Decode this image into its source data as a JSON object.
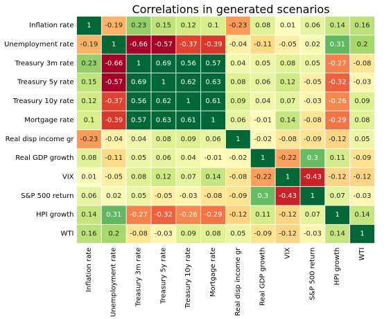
{
  "chart_data": {
    "type": "heatmap",
    "title": "Correlations in generated scenarios",
    "row_labels": [
      "Inflation rate",
      "Unemployment rate",
      "Treasury 3m rate",
      "Treasury 5y rate",
      "Treasury 10y rate",
      "Mortgage rate",
      "Real disp income gr",
      "Real GDP growth",
      "VIX",
      "S&P 500 return",
      "HPI growth",
      "WTI"
    ],
    "col_labels": [
      "Inflation rate",
      "Unemployment rate",
      "Treasury 3m rate",
      "Treasury 5y rate",
      "Treasury 10y rate",
      "Mortgage rate",
      "Real disp income gr",
      "Real GDP growth",
      "VIX",
      "S&P 500 return",
      "HPI growth",
      "WTI"
    ],
    "values": [
      [
        1,
        -0.19,
        0.23,
        0.15,
        0.12,
        0.1,
        -0.23,
        0.08,
        0.01,
        0.06,
        0.14,
        0.16
      ],
      [
        -0.19,
        1,
        -0.66,
        -0.57,
        -0.37,
        -0.39,
        -0.04,
        -0.11,
        -0.05,
        0.02,
        0.31,
        0.2
      ],
      [
        0.23,
        -0.66,
        1,
        0.69,
        0.56,
        0.57,
        0.04,
        0.05,
        0.08,
        0.05,
        -0.27,
        -0.08
      ],
      [
        0.15,
        -0.57,
        0.69,
        1,
        0.62,
        0.63,
        0.08,
        0.06,
        0.12,
        -0.05,
        -0.32,
        -0.03
      ],
      [
        0.12,
        -0.37,
        0.56,
        0.62,
        1,
        0.61,
        0.09,
        0.04,
        0.07,
        -0.03,
        -0.26,
        0.09
      ],
      [
        0.1,
        -0.39,
        0.57,
        0.63,
        0.61,
        1,
        0.06,
        -0.01,
        0.14,
        -0.08,
        -0.29,
        0.08
      ],
      [
        -0.23,
        -0.04,
        0.04,
        0.08,
        0.09,
        0.06,
        1,
        -0.02,
        -0.08,
        -0.09,
        -0.12,
        0.05
      ],
      [
        0.08,
        -0.11,
        0.05,
        0.06,
        0.04,
        -0.01,
        -0.02,
        1,
        -0.22,
        0.3,
        0.11,
        -0.09
      ],
      [
        0.01,
        -0.05,
        0.08,
        0.12,
        0.07,
        0.14,
        -0.08,
        -0.22,
        1,
        -0.43,
        -0.12,
        -0.12
      ],
      [
        0.06,
        0.02,
        0.05,
        -0.05,
        -0.03,
        -0.08,
        -0.09,
        0.3,
        -0.43,
        1,
        0.07,
        -0.03
      ],
      [
        0.14,
        0.31,
        -0.27,
        -0.32,
        -0.26,
        -0.29,
        -0.12,
        0.11,
        -0.12,
        0.07,
        1,
        0.14
      ],
      [
        0.16,
        0.2,
        -0.08,
        -0.03,
        0.09,
        0.08,
        0.05,
        -0.09,
        -0.12,
        -0.03,
        0.14,
        1
      ]
    ],
    "value_range": [
      -0.5,
      0.5
    ],
    "colormap": "RdYlGn",
    "cell_border_color": "#ffffff",
    "annotate": true,
    "colorbar": false
  }
}
